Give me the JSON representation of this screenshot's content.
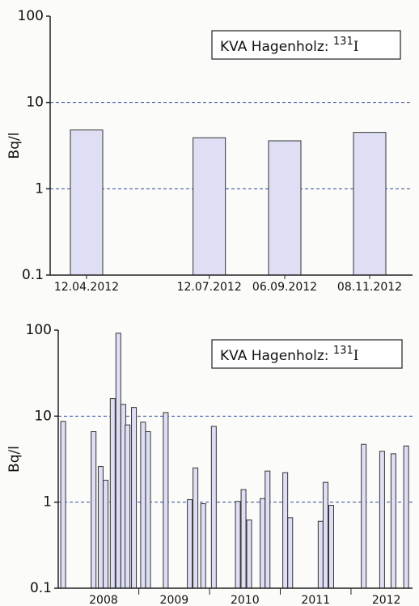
{
  "chart_data": [
    {
      "type": "bar",
      "title": {
        "text": "KVA Hagenholz:",
        "superscript": "131",
        "element": "I"
      },
      "y_label": "Bq/l",
      "log_scale": true,
      "grid": true,
      "color": "#dedff5",
      "x": [
        "12.04.2012",
        "12.07.2012",
        "06.09.2012",
        "08.11.2012"
      ],
      "values": [
        4.8,
        3.9,
        3.6,
        4.5
      ],
      "ylim": [
        0.1,
        100
      ],
      "yticks": [
        0.1,
        1,
        10,
        100
      ]
    },
    {
      "type": "bar",
      "title": {
        "text": "KVA Hagenholz:",
        "superscript": "131",
        "element": "I"
      },
      "y_label": "Bq/l",
      "log_scale": true,
      "grid": true,
      "color": "#dedff5",
      "x": [
        2007.93,
        2008.36,
        2008.46,
        2008.53,
        2008.63,
        2008.71,
        2008.78,
        2008.84,
        2008.93,
        2009.06,
        2009.13,
        2009.38,
        2009.72,
        2009.8,
        2009.91,
        2010.06,
        2010.4,
        2010.48,
        2010.56,
        2010.75,
        2010.82,
        2011.07,
        2011.14,
        2011.57,
        2011.64,
        2011.72,
        2012.18,
        2012.44,
        2012.6,
        2012.78
      ],
      "values": [
        8.7,
        6.6,
        2.6,
        1.8,
        16,
        92,
        13.7,
        7.9,
        12.6,
        8.5,
        6.6,
        11,
        1.07,
        2.5,
        0.96,
        7.6,
        1.02,
        1.4,
        0.62,
        1.1,
        2.3,
        2.2,
        0.66,
        0.6,
        1.7,
        0.92,
        4.7,
        3.9,
        3.65,
        4.5
      ],
      "xlim": [
        2007.86,
        2012.87
      ],
      "xticks": [
        {
          "value": 2008.5,
          "label": "2008"
        },
        {
          "value": 2009.5,
          "label": "2009"
        },
        {
          "value": 2010.5,
          "label": "2010"
        },
        {
          "value": 2011.5,
          "label": "2011"
        },
        {
          "value": 2012.5,
          "label": "2012"
        }
      ],
      "ylim": [
        0.1,
        100
      ],
      "yticks": [
        0.1,
        1,
        10,
        100
      ]
    }
  ]
}
